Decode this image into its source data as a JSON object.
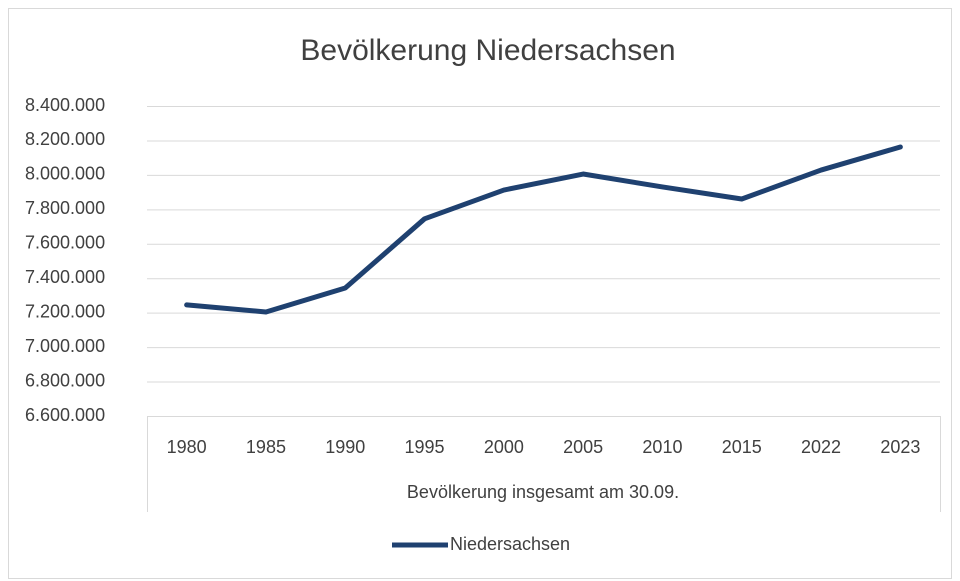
{
  "chart_data": {
    "type": "line",
    "title": "Bevölkerung Niedersachsen",
    "x_label": "Bevölkerung  insgesamt  am 30.09.",
    "categories": [
      "1980",
      "1985",
      "1990",
      "1995",
      "2000",
      "2005",
      "2010",
      "2015",
      "2022",
      "2023"
    ],
    "series": [
      {
        "name": "Niedersachsen",
        "color": "#1f4170",
        "values": [
          7245000,
          7204000,
          7343000,
          7745000,
          7912000,
          8005000,
          7930000,
          7860000,
          8028000,
          8162000
        ]
      }
    ],
    "ylim": [
      6600000,
      8400000
    ],
    "yticks": [
      {
        "value": 6600000,
        "label": "6.600.000"
      },
      {
        "value": 6800000,
        "label": "6.800.000"
      },
      {
        "value": 7000000,
        "label": "7.000.000"
      },
      {
        "value": 7200000,
        "label": "7.200.000"
      },
      {
        "value": 7400000,
        "label": "7.400.000"
      },
      {
        "value": 7600000,
        "label": "7.600.000"
      },
      {
        "value": 7800000,
        "label": "7.800.000"
      },
      {
        "value": 8000000,
        "label": "8.000.000"
      },
      {
        "value": 8200000,
        "label": "8.200.000"
      },
      {
        "value": 8400000,
        "label": "8.400.000"
      }
    ],
    "grid": true,
    "legend": "bottom"
  }
}
